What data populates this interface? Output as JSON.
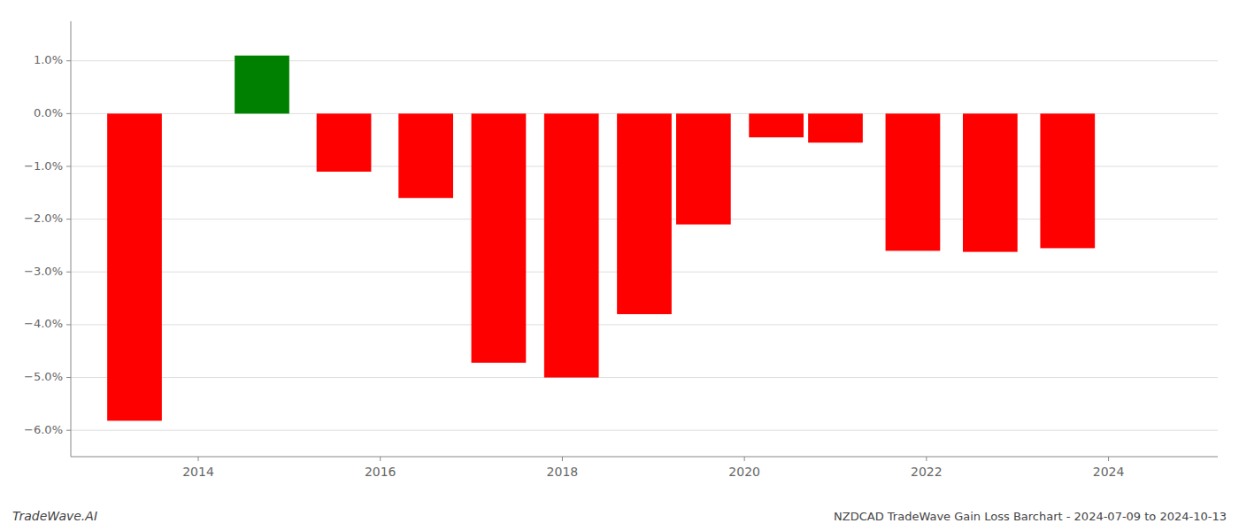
{
  "chart_data": {
    "type": "bar",
    "x": [
      2013.3,
      2014.7,
      2015.6,
      2016.5,
      2017.3,
      2018.1,
      2018.9,
      2019.55,
      2020.35,
      2021.0,
      2021.85,
      2022.7,
      2023.55
    ],
    "values": [
      -5.82,
      1.1,
      -1.1,
      -1.6,
      -4.72,
      -5.0,
      -3.8,
      -2.1,
      -0.45,
      -0.55,
      -2.6,
      -2.62,
      -2.55
    ],
    "colors": [
      "#ff0000",
      "#008000",
      "#ff0000",
      "#ff0000",
      "#ff0000",
      "#ff0000",
      "#ff0000",
      "#ff0000",
      "#ff0000",
      "#ff0000",
      "#ff0000",
      "#ff0000",
      "#ff0000"
    ],
    "xlim": [
      2012.6,
      2025.2
    ],
    "ylim": [
      -6.5,
      1.75
    ],
    "xticks": [
      2014,
      2016,
      2018,
      2020,
      2022,
      2024
    ],
    "yticks": [
      {
        "value": 1.0,
        "label": "1.0%"
      },
      {
        "value": 0.0,
        "label": "0.0%"
      },
      {
        "value": -1.0,
        "label": "−1.0%"
      },
      {
        "value": -2.0,
        "label": "−2.0%"
      },
      {
        "value": -3.0,
        "label": "−3.0%"
      },
      {
        "value": -4.0,
        "label": "−4.0%"
      },
      {
        "value": -5.0,
        "label": "−5.0%"
      },
      {
        "value": -6.0,
        "label": "−6.0%"
      }
    ],
    "grid": "y",
    "annotations": [
      "TradeWave.AI",
      "NZDCAD TradeWave Gain Loss Barchart - 2024-07-09 to 2024-10-13"
    ]
  }
}
